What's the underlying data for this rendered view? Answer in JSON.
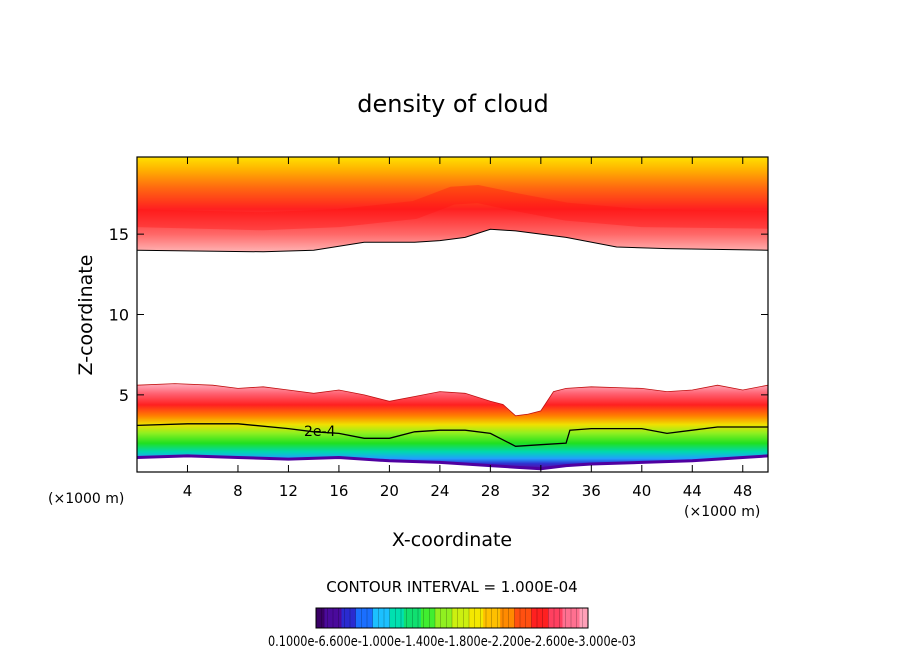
{
  "chart_data": {
    "type": "heatmap",
    "title": "density of cloud",
    "xlabel": "X-coordinate",
    "ylabel": "Z-coordinate",
    "x_unit_label": "(×1000 m)",
    "xlim": [
      0,
      50
    ],
    "ylim": [
      0.2,
      19.8
    ],
    "x_ticks": [
      4,
      8,
      12,
      16,
      20,
      24,
      28,
      32,
      36,
      40,
      44,
      48
    ],
    "y_ticks": [
      5,
      10,
      15
    ],
    "contour_interval_label": "CONTOUR INTERVAL = 1.000E-04",
    "contour_label": "2e-4",
    "colorbar": {
      "labels_text": "0.1000e-05",
      "label_overlap": "0.1000e-6.600e-1.000e-1.400e-1.800e-2.200e-2.600e-3.000e-03",
      "colors": [
        "#3a0066",
        "#4b0a9c",
        "#2a2bd0",
        "#1a6fff",
        "#1cc0ff",
        "#00e0b0",
        "#10e070",
        "#40ee30",
        "#90f020",
        "#ccf010",
        "#f4e800",
        "#ffc000",
        "#ff8a00",
        "#ff5010",
        "#ff2020",
        "#ff4060",
        "#ff7090",
        "#ffa0b8"
      ]
    },
    "upper_layer": {
      "base_z": [
        [
          0,
          14.0
        ],
        [
          10,
          13.9
        ],
        [
          14,
          14.0
        ],
        [
          18,
          14.5
        ],
        [
          22,
          14.5
        ],
        [
          24,
          14.6
        ],
        [
          26,
          14.8
        ],
        [
          28,
          15.3
        ],
        [
          30,
          15.2
        ],
        [
          32,
          15.0
        ],
        [
          34,
          14.8
        ],
        [
          38,
          14.2
        ],
        [
          42,
          14.1
        ],
        [
          50,
          14.0
        ]
      ],
      "peak_z": [
        [
          0,
          16.0
        ],
        [
          10,
          15.8
        ],
        [
          16,
          16.0
        ],
        [
          22,
          16.5
        ],
        [
          25,
          17.4
        ],
        [
          27,
          17.5
        ],
        [
          30,
          17.0
        ],
        [
          34,
          16.4
        ],
        [
          40,
          16.0
        ],
        [
          50,
          15.9
        ]
      ]
    },
    "lower_layer": {
      "top_z": [
        [
          0,
          5.6
        ],
        [
          3,
          5.7
        ],
        [
          6,
          5.6
        ],
        [
          8,
          5.4
        ],
        [
          10,
          5.5
        ],
        [
          12,
          5.3
        ],
        [
          14,
          5.1
        ],
        [
          16,
          5.3
        ],
        [
          18,
          5.0
        ],
        [
          20,
          4.6
        ],
        [
          22,
          4.9
        ],
        [
          24,
          5.2
        ],
        [
          26,
          5.1
        ],
        [
          28,
          4.6
        ],
        [
          29,
          4.4
        ],
        [
          30,
          3.7
        ],
        [
          31,
          3.8
        ],
        [
          32,
          4.0
        ],
        [
          33,
          5.2
        ],
        [
          34,
          5.4
        ],
        [
          36,
          5.5
        ],
        [
          40,
          5.4
        ],
        [
          42,
          5.2
        ],
        [
          44,
          5.3
        ],
        [
          46,
          5.6
        ],
        [
          48,
          5.3
        ],
        [
          50,
          5.6
        ]
      ],
      "contour_2e4_z": [
        [
          0,
          3.1
        ],
        [
          4,
          3.2
        ],
        [
          8,
          3.2
        ],
        [
          12,
          2.9
        ],
        [
          14,
          2.7
        ],
        [
          16,
          2.6
        ],
        [
          18,
          2.3
        ],
        [
          20,
          2.3
        ],
        [
          22,
          2.7
        ],
        [
          24,
          2.8
        ],
        [
          26,
          2.8
        ],
        [
          28,
          2.6
        ],
        [
          30,
          1.8
        ],
        [
          32,
          1.9
        ],
        [
          34,
          2.0
        ],
        [
          34.3,
          2.8
        ],
        [
          36,
          2.9
        ],
        [
          40,
          2.9
        ],
        [
          42,
          2.6
        ],
        [
          44,
          2.8
        ],
        [
          46,
          3.0
        ],
        [
          50,
          3.0
        ]
      ],
      "bottom_z": [
        [
          0,
          1.1
        ],
        [
          4,
          1.2
        ],
        [
          8,
          1.1
        ],
        [
          12,
          1.0
        ],
        [
          16,
          1.1
        ],
        [
          20,
          0.9
        ],
        [
          24,
          0.8
        ],
        [
          28,
          0.6
        ],
        [
          30,
          0.5
        ],
        [
          32,
          0.4
        ],
        [
          34,
          0.6
        ],
        [
          36,
          0.7
        ],
        [
          40,
          0.8
        ],
        [
          44,
          0.9
        ],
        [
          48,
          1.1
        ],
        [
          50,
          1.2
        ]
      ]
    }
  }
}
